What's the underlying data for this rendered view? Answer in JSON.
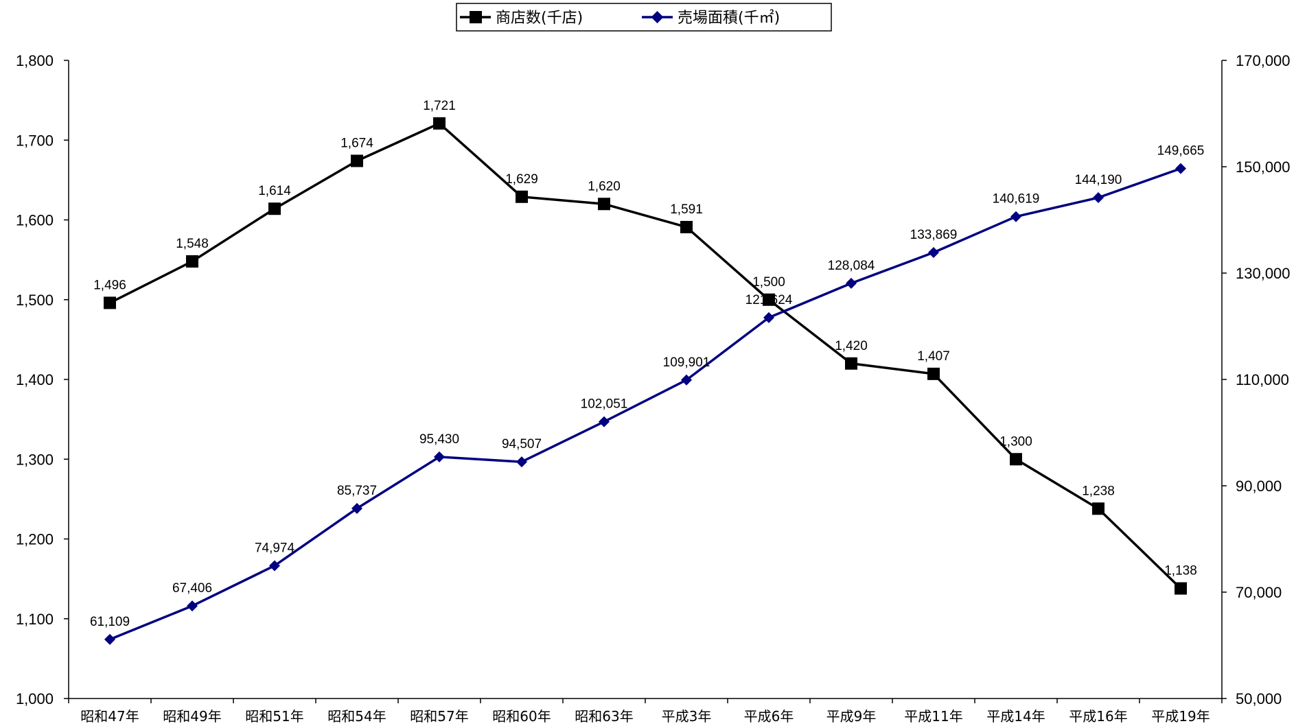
{
  "chart_data": {
    "type": "line",
    "categories": [
      "昭和47年",
      "昭和49年",
      "昭和51年",
      "昭和54年",
      "昭和57年",
      "昭和60年",
      "昭和63年",
      "平成3年",
      "平成6年",
      "平成9年",
      "平成11年",
      "平成14年",
      "平成16年",
      "平成19年"
    ],
    "series": [
      {
        "name": "商店数(千店)",
        "axis": "left",
        "color": "#000000",
        "marker": "square",
        "values": [
          1496,
          1548,
          1614,
          1674,
          1721,
          1629,
          1620,
          1591,
          1500,
          1420,
          1407,
          1300,
          1238,
          1138
        ],
        "labels": [
          "1,496",
          "1,548",
          "1,614",
          "1,674",
          "1,721",
          "1,629",
          "1,620",
          "1,591",
          "1,500",
          "1,420",
          "1,407",
          "1,300",
          "1,238",
          "1,138"
        ]
      },
      {
        "name": "売場面積(千㎡)",
        "axis": "right",
        "color": "#000080",
        "marker": "diamond",
        "values": [
          61109,
          67406,
          74974,
          85737,
          95430,
          94507,
          102051,
          109901,
          121624,
          128084,
          133869,
          140619,
          144190,
          149665
        ],
        "labels": [
          "61,109",
          "67,406",
          "74,974",
          "85,737",
          "95,430",
          "94,507",
          "102,051",
          "109,901",
          "121,624",
          "128,084",
          "133,869",
          "140,619",
          "144,190",
          "149,665"
        ]
      }
    ],
    "y_left": {
      "min": 1000,
      "max": 1800,
      "step": 100,
      "ticks": [
        "1,000",
        "1,100",
        "1,200",
        "1,300",
        "1,400",
        "1,500",
        "1,600",
        "1,700",
        "1,800"
      ]
    },
    "y_right": {
      "min": 50000,
      "max": 170000,
      "step": 20000,
      "ticks": [
        "50,000",
        "70,000",
        "90,000",
        "110,000",
        "130,000",
        "150,000",
        "170,000"
      ]
    },
    "legend": {
      "position": "top-center"
    },
    "grid": false
  }
}
